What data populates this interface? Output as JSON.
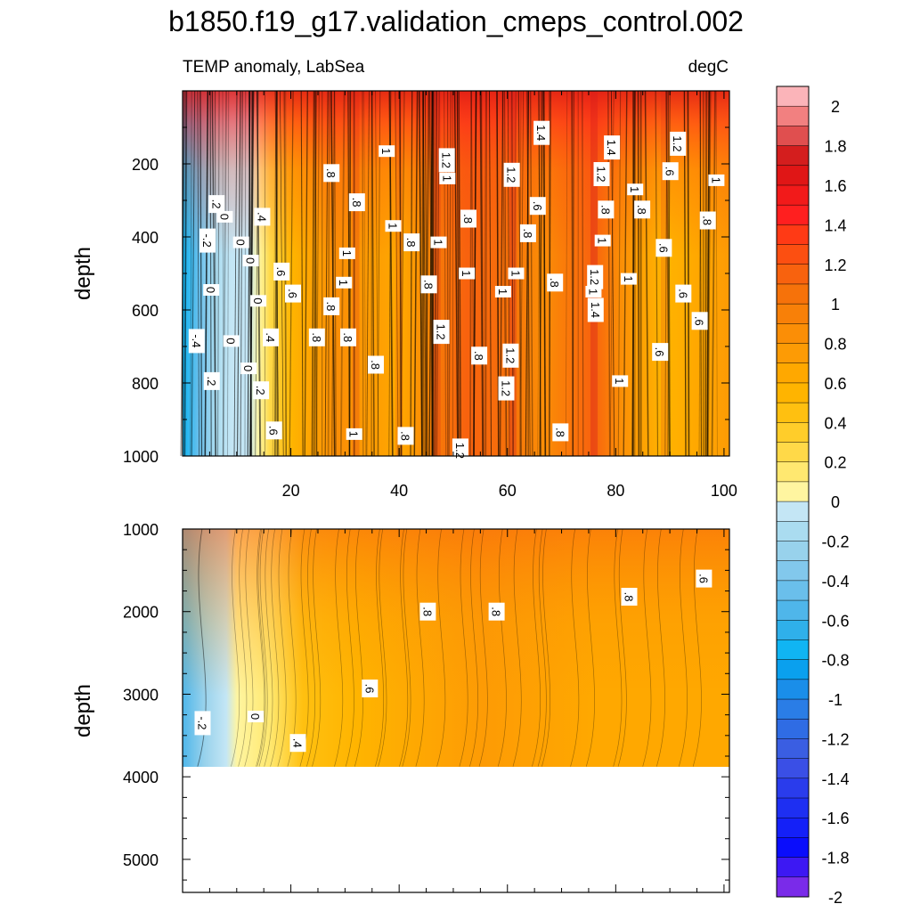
{
  "chart_data": {
    "type": "heatmap",
    "title": "b1850.f19_g17.validation_cmeps_control.002",
    "upper_panel": {
      "subtitle_left": "TEMP anomaly, LabSea",
      "subtitle_right": "degC",
      "ylabel": "depth",
      "xlim": [
        0,
        101
      ],
      "ylim": [
        0,
        1000
      ],
      "x_ticks": [
        20,
        40,
        60,
        80,
        100
      ],
      "y_ticks": [
        200,
        400,
        600,
        800,
        1000
      ],
      "contour_labels": [
        {
          "text": "-.4",
          "x": 2.6,
          "y": 685
        },
        {
          "text": "-.2",
          "x": 4.6,
          "y": 410
        },
        {
          "text": "0",
          "x": 5.3,
          "y": 545
        },
        {
          "text": ".2",
          "x": 6.3,
          "y": 310
        },
        {
          "text": "0",
          "x": 7.8,
          "y": 345
        },
        {
          "text": ".2",
          "x": 5.4,
          "y": 795
        },
        {
          "text": "0",
          "x": 9,
          "y": 685
        },
        {
          "text": "0",
          "x": 10.8,
          "y": 415
        },
        {
          "text": "0",
          "x": 12.6,
          "y": 465
        },
        {
          "text": "0",
          "x": 12.2,
          "y": 760
        },
        {
          "text": "0",
          "x": 14,
          "y": 575
        },
        {
          "text": ".4",
          "x": 14.7,
          "y": 345
        },
        {
          "text": ".6",
          "x": 18.3,
          "y": 495
        },
        {
          "text": ".4",
          "x": 16.3,
          "y": 675
        },
        {
          "text": ".2",
          "x": 14.5,
          "y": 820
        },
        {
          "text": ".6",
          "x": 16.9,
          "y": 930
        },
        {
          "text": ".6",
          "x": 20.4,
          "y": 555
        },
        {
          "text": ".8",
          "x": 24.8,
          "y": 675
        },
        {
          "text": ".8",
          "x": 27.5,
          "y": 590
        },
        {
          "text": ".8",
          "x": 27.5,
          "y": 225
        },
        {
          "text": ".8",
          "x": 32.2,
          "y": 305
        },
        {
          "text": "1",
          "x": 29.8,
          "y": 525
        },
        {
          "text": "1",
          "x": 30.4,
          "y": 445
        },
        {
          "text": ".8",
          "x": 30.6,
          "y": 675
        },
        {
          "text": "1",
          "x": 31.7,
          "y": 940
        },
        {
          "text": ".8",
          "x": 35.7,
          "y": 750
        },
        {
          "text": "1",
          "x": 37.7,
          "y": 165
        },
        {
          "text": "1",
          "x": 38.9,
          "y": 370
        },
        {
          "text": ".8",
          "x": 42.3,
          "y": 415
        },
        {
          "text": ".8",
          "x": 41.2,
          "y": 945
        },
        {
          "text": ".8",
          "x": 45.5,
          "y": 530
        },
        {
          "text": "1",
          "x": 47.3,
          "y": 415
        },
        {
          "text": "1.2",
          "x": 48.8,
          "y": 190
        },
        {
          "text": "1",
          "x": 48.9,
          "y": 240
        },
        {
          "text": "1.2",
          "x": 47.8,
          "y": 660
        },
        {
          "text": ".8",
          "x": 52.8,
          "y": 350
        },
        {
          "text": "1",
          "x": 52.5,
          "y": 500
        },
        {
          "text": "1.2",
          "x": 51.3,
          "y": 985
        },
        {
          "text": ".8",
          "x": 54.8,
          "y": 725
        },
        {
          "text": "1",
          "x": 59.2,
          "y": 550
        },
        {
          "text": "1.2",
          "x": 60.8,
          "y": 230
        },
        {
          "text": "1",
          "x": 61.6,
          "y": 500
        },
        {
          "text": "1.2",
          "x": 60.6,
          "y": 725
        },
        {
          "text": "1.2",
          "x": 59.8,
          "y": 815
        },
        {
          "text": ".8",
          "x": 63.8,
          "y": 390
        },
        {
          "text": ".6",
          "x": 65.6,
          "y": 315
        },
        {
          "text": "1.4",
          "x": 66.3,
          "y": 115
        },
        {
          "text": ".8",
          "x": 68.8,
          "y": 525
        },
        {
          "text": ".8",
          "x": 69.8,
          "y": 935
        },
        {
          "text": "1.2",
          "x": 77.4,
          "y": 228
        },
        {
          "text": "1.4",
          "x": 79.3,
          "y": 155
        },
        {
          "text": "1",
          "x": 75.9,
          "y": 550
        },
        {
          "text": "1.2",
          "x": 76.2,
          "y": 510
        },
        {
          "text": "1.4",
          "x": 76.3,
          "y": 600
        },
        {
          "text": "1",
          "x": 77.6,
          "y": 410
        },
        {
          "text": ".8",
          "x": 78.2,
          "y": 325
        },
        {
          "text": "1",
          "x": 82.4,
          "y": 515
        },
        {
          "text": "1",
          "x": 80.8,
          "y": 795
        },
        {
          "text": "1",
          "x": 83.6,
          "y": 270
        },
        {
          "text": ".8",
          "x": 84.9,
          "y": 325
        },
        {
          "text": ".6",
          "x": 88.2,
          "y": 715
        },
        {
          "text": ".6",
          "x": 88.9,
          "y": 430
        },
        {
          "text": ".6",
          "x": 90.1,
          "y": 220
        },
        {
          "text": "1.2",
          "x": 91.5,
          "y": 145
        },
        {
          "text": ".6",
          "x": 92.5,
          "y": 555
        },
        {
          "text": ".6",
          "x": 95.5,
          "y": 630
        },
        {
          "text": ".8",
          "x": 97,
          "y": 355
        },
        {
          "text": "1",
          "x": 98.6,
          "y": 245
        }
      ]
    },
    "lower_panel": {
      "ylabel": "depth",
      "xlim": [
        0,
        101
      ],
      "ylim": [
        1000,
        5400
      ],
      "data_max_depth": 3875,
      "y_ticks": [
        1000,
        2000,
        3000,
        4000,
        5000
      ],
      "contour_labels": [
        {
          "text": "-.2",
          "x": 3.7,
          "y": 3350
        },
        {
          "text": "0",
          "x": 13.5,
          "y": 3270
        },
        {
          "text": ".4",
          "x": 21.3,
          "y": 3590
        },
        {
          "text": ".6",
          "x": 34.6,
          "y": 2930
        },
        {
          "text": ".8",
          "x": 45.3,
          "y": 2000
        },
        {
          "text": ".8",
          "x": 58,
          "y": 2000
        },
        {
          "text": ".8",
          "x": 82.5,
          "y": 1820
        },
        {
          "text": ".6",
          "x": 96.3,
          "y": 1600
        }
      ]
    },
    "colorbar": {
      "levels": [
        "2",
        "1.8",
        "1.6",
        "1.4",
        "1.2",
        "1",
        "0.8",
        "0.6",
        "0.4",
        "0.2",
        "0",
        "-0.2",
        "-0.4",
        "-0.6",
        "-0.8",
        "-1",
        "-1.2",
        "-1.4",
        "-1.6",
        "-1.8",
        "-2"
      ],
      "colors": [
        "#fbb4b9",
        "#f28080",
        "#e04f4f",
        "#d41e1e",
        "#e01616",
        "#f21a1a",
        "#ff1f1f",
        "#ff3a15",
        "#fc4f11",
        "#f8620e",
        "#f6720a",
        "#f88008",
        "#fb8e06",
        "#fd9b05",
        "#ffa800",
        "#ffb400",
        "#ffc010",
        "#ffcd2a",
        "#ffd948",
        "#ffe870",
        "#fff5a0",
        "#c4e6f5",
        "#aadcf0",
        "#98d2ec",
        "#82c8ec",
        "#6abfeb",
        "#4fb6ea",
        "#2fb0ea",
        "#10b5f3",
        "#0aa0ee",
        "#1a8ee9",
        "#2a7de6",
        "#2f6ce4",
        "#3a5ee2",
        "#3a4fe6",
        "#2a3cec",
        "#1e2ff2",
        "#1420f8",
        "#0a0dfc",
        "#3d18f3",
        "#7a2be9"
      ]
    }
  }
}
